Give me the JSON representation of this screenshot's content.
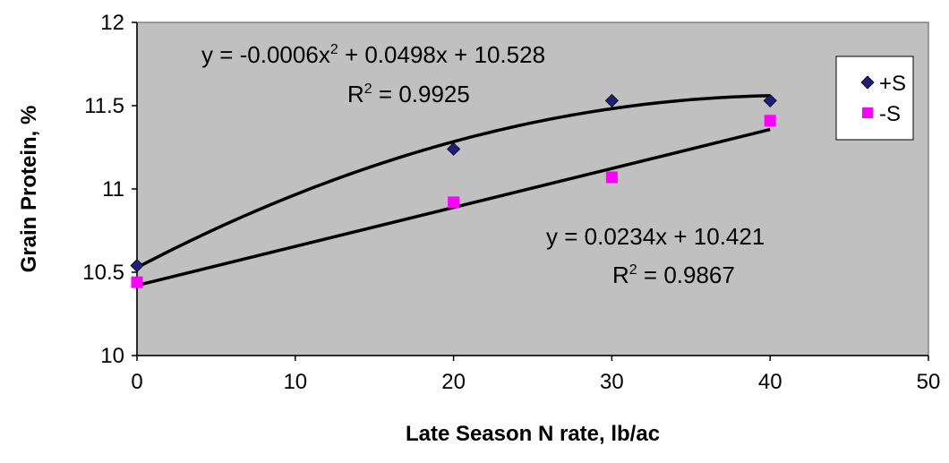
{
  "chart_data": {
    "type": "scatter",
    "xlabel": "Late Season N rate, lb/ac",
    "ylabel": "Grain Protein, %",
    "xlim": [
      0,
      50
    ],
    "ylim": [
      10,
      12
    ],
    "xticks": [
      "0",
      "10",
      "20",
      "30",
      "40",
      "50"
    ],
    "yticks": [
      "10",
      "10.5",
      "11",
      "11.5",
      "12"
    ],
    "grid": false,
    "legend_position": "top-right",
    "series": [
      {
        "name": "+S",
        "marker": "diamond",
        "color": "#1f1f7a",
        "x": [
          0,
          20,
          30,
          40
        ],
        "y": [
          10.54,
          11.24,
          11.53,
          11.53
        ],
        "trendline": {
          "type": "polynomial",
          "coefficients": [
            -0.0006,
            0.0498,
            10.528
          ],
          "equation_prefix": "y = -0.0006x",
          "equation_exp": "2",
          "equation_suffix": " + 0.0498x + 10.528",
          "r2_prefix": "R",
          "r2_exp": "2",
          "r2_suffix": " = 0.9925"
        }
      },
      {
        "name": "-S",
        "marker": "square",
        "color": "#ff00ff",
        "x": [
          0,
          20,
          30,
          40
        ],
        "y": [
          10.44,
          10.92,
          11.07,
          11.41
        ],
        "trendline": {
          "type": "linear",
          "coefficients": [
            0.0234,
            10.421
          ],
          "equation_prefix": "y = 0.0234x + 10.421",
          "equation_exp": "",
          "equation_suffix": "",
          "r2_prefix": "R",
          "r2_exp": "2",
          "r2_suffix": " = 0.9867"
        }
      }
    ]
  }
}
